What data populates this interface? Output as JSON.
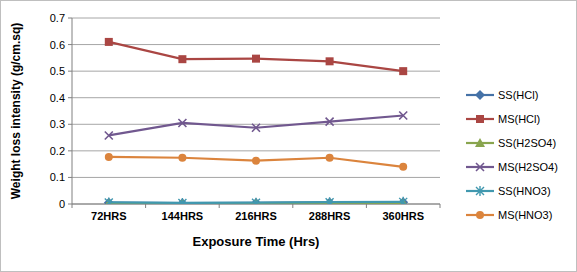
{
  "chart_data": {
    "type": "line",
    "x_label": "Exposure Time (Hrs)",
    "y_label": "Weight loss intensity (g/cm.sq)",
    "categories": [
      "72HRS",
      "144HRS",
      "216HRS",
      "288HRS",
      "360HRS"
    ],
    "ylim": [
      0,
      0.7
    ],
    "yticks": [
      0,
      0.1,
      0.2,
      0.3,
      0.4,
      0.5,
      0.6,
      0.7
    ],
    "grid": true,
    "legend": "right",
    "series": [
      {
        "name": "SS(HCl)",
        "color": "#4572a7",
        "marker": "diamond",
        "values": [
          0.005,
          0.003,
          0.004,
          0.006,
          0.007
        ]
      },
      {
        "name": "MS(HCl)",
        "color": "#aa4643",
        "marker": "square",
        "values": [
          0.61,
          0.545,
          0.547,
          0.537,
          0.5
        ]
      },
      {
        "name": "SS(H2SO4)",
        "color": "#89a54e",
        "marker": "triangle",
        "values": [
          0.003,
          0.002,
          0.003,
          0.004,
          0.004
        ]
      },
      {
        "name": "MS(H2SO4)",
        "color": "#71588f",
        "marker": "x",
        "values": [
          0.258,
          0.305,
          0.287,
          0.31,
          0.333
        ]
      },
      {
        "name": "SS(HNO3)",
        "color": "#4198af",
        "marker": "star",
        "values": [
          0.006,
          0.004,
          0.005,
          0.007,
          0.008
        ]
      },
      {
        "name": "MS(HNO3)",
        "color": "#db843d",
        "marker": "circle",
        "values": [
          0.177,
          0.174,
          0.163,
          0.174,
          0.14
        ]
      }
    ]
  }
}
